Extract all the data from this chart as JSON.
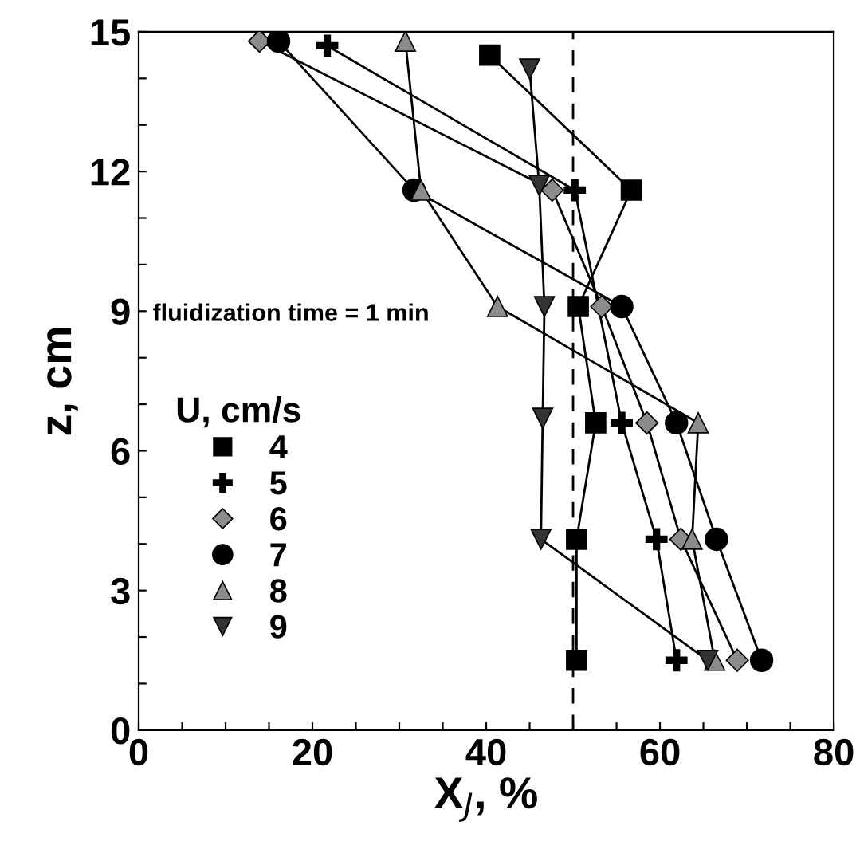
{
  "chart_data": {
    "type": "line",
    "xlabel": "X$_{J}$, %",
    "ylabel": "z, cm",
    "legend_title": "U, cm/s",
    "legend": "left",
    "xlim": [
      0,
      80
    ],
    "ylim": [
      0,
      15
    ],
    "xticks": [
      0,
      {
        "value": 5,
        "label": null
      },
      {
        "value": 10,
        "label": null
      },
      {
        "value": 15,
        "label": null
      },
      20,
      {
        "value": 25,
        "label": null
      },
      {
        "value": 30,
        "label": null
      },
      {
        "value": 35,
        "label": null
      },
      40,
      {
        "value": 45,
        "label": null
      },
      {
        "value": 50,
        "label": null
      },
      {
        "value": 55,
        "label": null
      },
      60,
      {
        "value": 65,
        "label": null
      },
      {
        "value": 70,
        "label": null
      },
      {
        "value": 75,
        "label": null
      },
      80
    ],
    "yticks": [
      0,
      {
        "value": 1,
        "label": null
      },
      {
        "value": 2,
        "label": null
      },
      3,
      {
        "value": 4,
        "label": null
      },
      {
        "value": 5,
        "label": null
      },
      6,
      {
        "value": 7,
        "label": null
      },
      {
        "value": 8,
        "label": null
      },
      9,
      {
        "value": 10,
        "label": null
      },
      {
        "value": 11,
        "label": null
      },
      12,
      {
        "value": 13,
        "label": null
      },
      {
        "value": 14,
        "label": null
      },
      15
    ],
    "grid": false,
    "line_style": "solid",
    "annotations": [
      {
        "text": "fluidization time = 1 min"
      }
    ],
    "ref_lines": [
      {
        "axis": "x",
        "value": 50,
        "line_style": "dashed",
        "color": "#000000"
      }
    ],
    "series": [
      {
        "name": "4",
        "color": "#000000",
        "marker": "square",
        "x": [
          40.4,
          56.7,
          50.6,
          52.6,
          50.4,
          50.4
        ],
        "values": [
          14.5,
          11.6,
          9.1,
          6.6,
          4.1,
          1.5
        ]
      },
      {
        "name": "5",
        "color": "#000000",
        "marker": "cross",
        "x": [
          21.7,
          50.2,
          55.6,
          59.6,
          61.9
        ],
        "values": [
          14.7,
          11.6,
          6.6,
          4.1,
          1.5
        ]
      },
      {
        "name": "6",
        "color": "#8c8c8c",
        "marker": "diamond",
        "x": [
          13.9,
          47.6,
          53.3,
          58.5,
          62.4,
          68.9
        ],
        "values": [
          14.8,
          11.6,
          9.1,
          6.6,
          4.1,
          1.5
        ]
      },
      {
        "name": "7",
        "color": "#000000",
        "marker": "circle",
        "x": [
          16.1,
          31.7,
          55.6,
          61.9,
          66.5,
          71.7
        ],
        "values": [
          14.8,
          11.6,
          9.1,
          6.6,
          4.1,
          1.5
        ]
      },
      {
        "name": "8",
        "color": "#8c8c8c",
        "marker": "triangle",
        "x": [
          30.7,
          32.5,
          41.3,
          64.4,
          63.7,
          66.3
        ],
        "values": [
          14.8,
          11.6,
          9.1,
          6.6,
          4.1,
          1.5
        ]
      },
      {
        "name": "9",
        "color": "#333333",
        "marker": "triangle_down",
        "x": [
          45.0,
          46.1,
          46.7,
          46.5,
          46.3,
          65.5
        ],
        "values": [
          14.2,
          11.7,
          9.1,
          6.7,
          4.1,
          1.5
        ]
      }
    ]
  }
}
